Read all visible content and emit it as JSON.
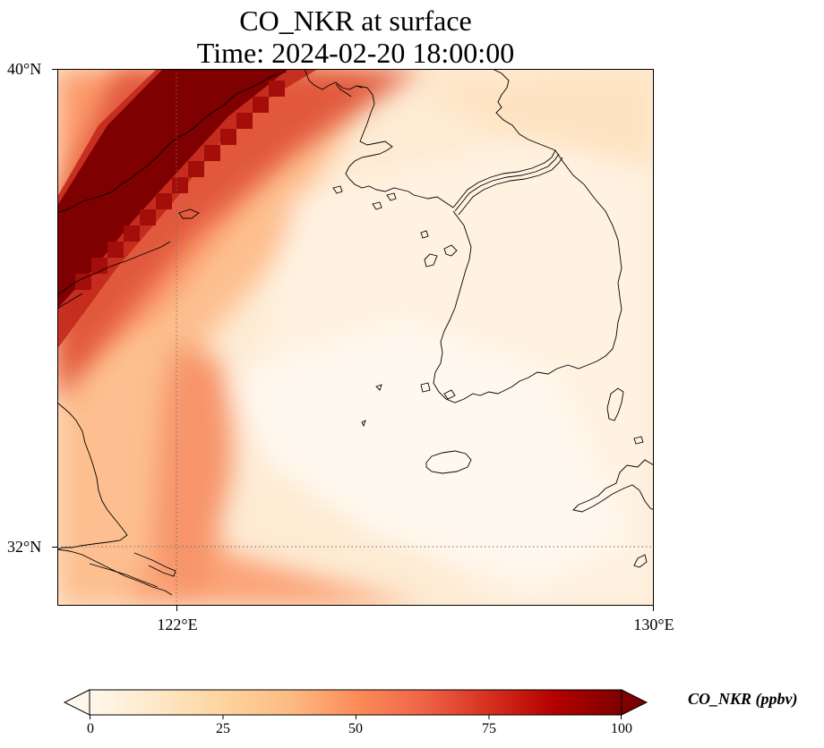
{
  "title": {
    "line1": "CO_NKR at surface",
    "line2": "Time: 2024-02-20 18:00:00"
  },
  "map": {
    "extent": {
      "lon": [
        120,
        130
      ],
      "lat": [
        31,
        40
      ]
    },
    "gridlines": {
      "lon": [
        122
      ],
      "lat": [
        32
      ],
      "style": "dotted"
    },
    "lat_labels": [
      "40°N",
      "32°N"
    ],
    "lon_labels": [
      "122°E",
      "130°E"
    ],
    "field_description_colors": {
      "high": "#7f0000",
      "mid": "#ef6548",
      "low": "#fdd49e",
      "min": "#fff7ec"
    }
  },
  "colorbar": {
    "title": "CO_NKR (ppbv)",
    "range": [
      0,
      100
    ],
    "ticks": [
      "0",
      "25",
      "50",
      "75",
      "100"
    ],
    "extend": "both",
    "colormap": [
      "#fff7ec",
      "#fee8c8",
      "#fdd49e",
      "#fdbb84",
      "#fc8d59",
      "#ef6548",
      "#d7301f",
      "#b30000",
      "#7f0000"
    ]
  }
}
